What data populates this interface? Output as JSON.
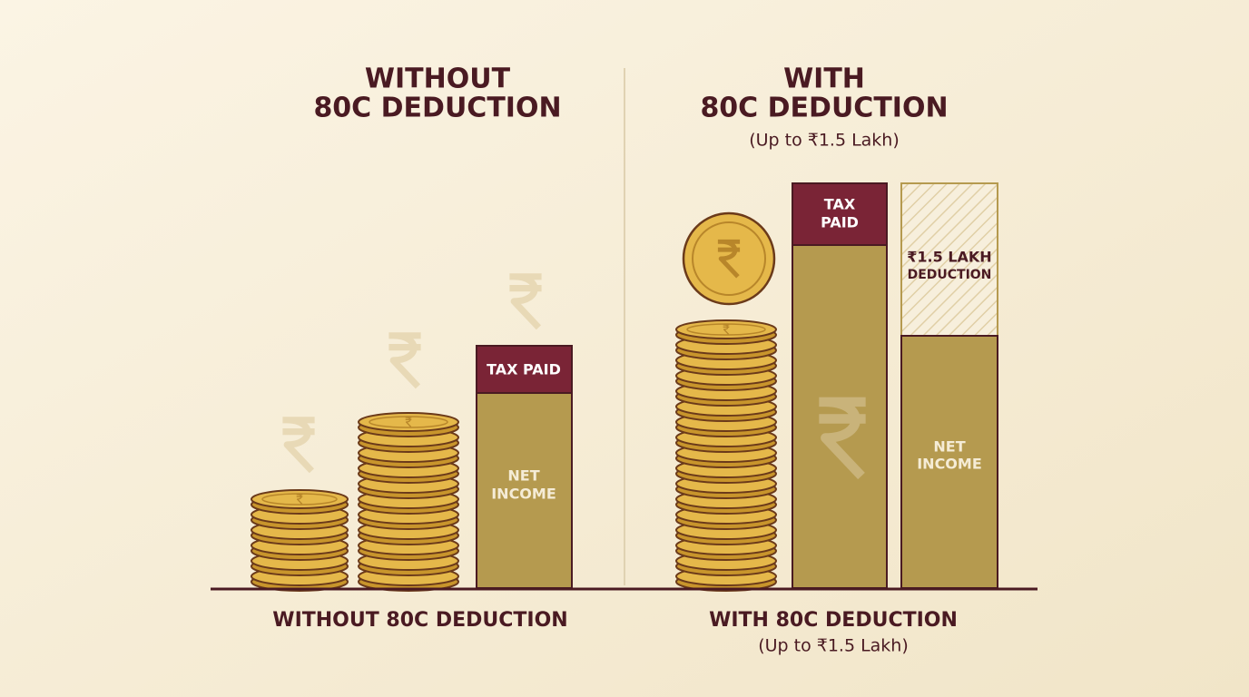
{
  "left_panel": {
    "title": [
      "WITHOUT",
      "80C DEDUCTION"
    ],
    "bar": {
      "tax": [
        "TAX PAID"
      ],
      "net": [
        "NET",
        "INCOME"
      ]
    },
    "caption": "WITHOUT 80C DEDUCTION"
  },
  "right_panel": {
    "title": [
      "WITH",
      "80C DEDUCTION"
    ],
    "subtitle": "(Up to ₹1.5 Lakh)",
    "bar_tax": {
      "tax": [
        "TAX",
        "PAID"
      ]
    },
    "bar_deduction": {
      "deduction": [
        "₹1.5 LAKH",
        "DEDUCTION"
      ],
      "net": [
        "NET",
        "INCOME"
      ]
    },
    "caption": "WITH 80C DEDUCTION",
    "caption_sub": "(Up to ₹1.5 Lakh)"
  }
}
